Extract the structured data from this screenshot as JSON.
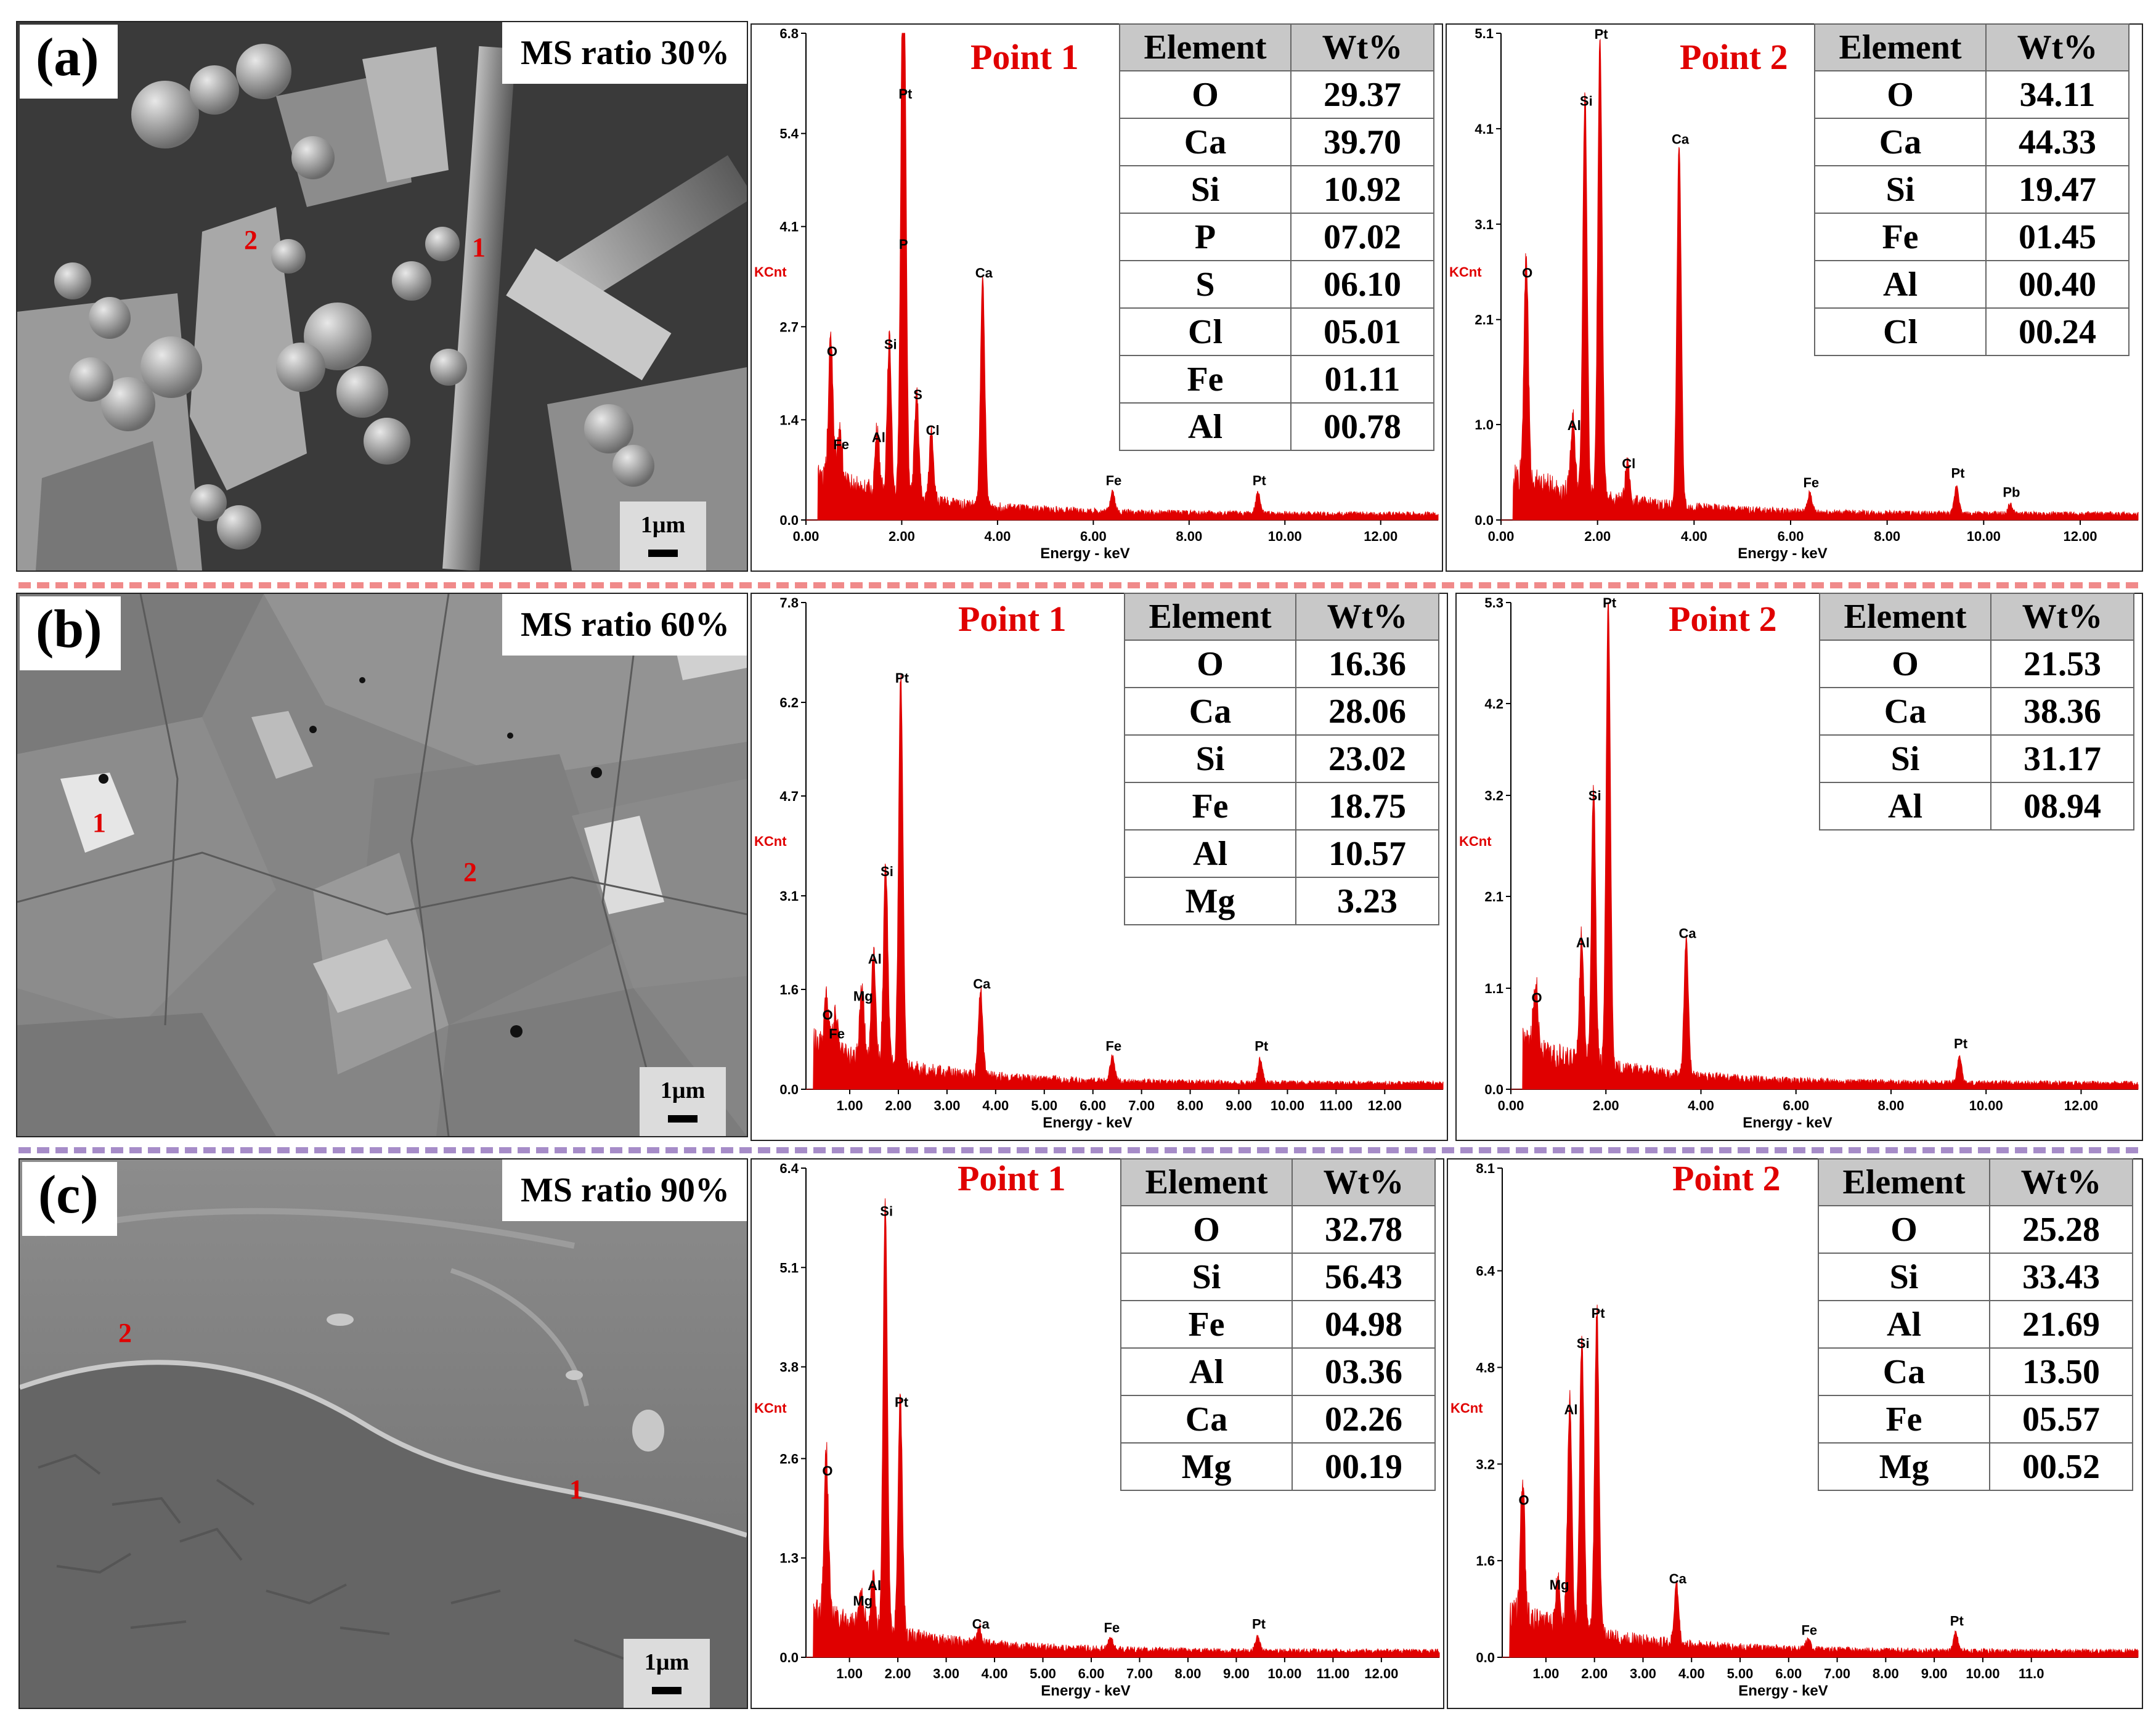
{
  "panels": [
    {
      "label": "(a)",
      "ms_ratio": "MS ratio 30%",
      "scale": "1µm",
      "point_markers": [
        "1",
        "2"
      ],
      "spectra": [
        {
          "title": "Point 1",
          "y_ticks": [
            "0.0",
            "1.4",
            "2.7",
            "4.1",
            "5.4",
            "6.8"
          ],
          "x_ticks": [
            "0.00",
            "2.00",
            "4.00",
            "6.00",
            "8.00",
            "10.00",
            "12.00"
          ],
          "ylabel": "KCnt",
          "xlabel": "Energy - keV",
          "table": {
            "headers": [
              "Element",
              "Wt%"
            ],
            "rows": [
              [
                "O",
                "29.37"
              ],
              [
                "Ca",
                "39.70"
              ],
              [
                "Si",
                "10.92"
              ],
              [
                "P",
                "07.02"
              ],
              [
                "S",
                "06.10"
              ],
              [
                "Cl",
                "05.01"
              ],
              [
                "Fe",
                "01.11"
              ],
              [
                "Al",
                "00.78"
              ]
            ]
          },
          "peaks": [
            [
              "O",
              0.52,
              2.1
            ],
            [
              "Fe",
              0.71,
              0.8
            ],
            [
              "Al",
              1.49,
              0.9
            ],
            [
              "Si",
              1.74,
              2.2
            ],
            [
              "Pt",
              2.05,
              5.7
            ],
            [
              "P",
              2.01,
              3.6
            ],
            [
              "S",
              2.31,
              1.5
            ],
            [
              "Cl",
              2.62,
              1.0
            ],
            [
              "Ca",
              3.69,
              3.2
            ],
            [
              "Fe",
              6.4,
              0.3
            ],
            [
              "Pt",
              9.44,
              0.3
            ]
          ]
        },
        {
          "title": "Point 2",
          "y_ticks": [
            "0.0",
            "1.0",
            "2.1",
            "3.1",
            "4.1",
            "5.1"
          ],
          "x_ticks": [
            "0.00",
            "2.00",
            "4.00",
            "6.00",
            "8.00",
            "10.00",
            "12.00"
          ],
          "ylabel": "KCnt",
          "xlabel": "Energy - keV",
          "table": {
            "headers": [
              "Element",
              "Wt%"
            ],
            "rows": [
              [
                "O",
                "34.11"
              ],
              [
                "Ca",
                "44.33"
              ],
              [
                "Si",
                "19.47"
              ],
              [
                "Fe",
                "01.45"
              ],
              [
                "Al",
                "00.40"
              ],
              [
                "Cl",
                "00.24"
              ]
            ]
          },
          "peaks": [
            [
              "O",
              0.52,
              2.4
            ],
            [
              "Al",
              1.49,
              0.8
            ],
            [
              "Si",
              1.74,
              4.2
            ],
            [
              "Pt",
              2.05,
              4.9
            ],
            [
              "Cl",
              2.62,
              0.4
            ],
            [
              "Ca",
              3.69,
              3.8
            ],
            [
              "Fe",
              6.4,
              0.2
            ],
            [
              "Pt",
              9.44,
              0.3
            ],
            [
              "Pb",
              10.55,
              0.1
            ]
          ]
        }
      ]
    },
    {
      "label": "(b)",
      "ms_ratio": "MS ratio 60%",
      "scale": "1µm",
      "point_markers": [
        "1",
        "2"
      ],
      "spectra": [
        {
          "title": "Point 1",
          "y_ticks": [
            "0.0",
            "1.6",
            "3.1",
            "4.7",
            "6.2",
            "7.8"
          ],
          "x_ticks": [
            "1.00",
            "2.00",
            "3.00",
            "4.00",
            "5.00",
            "6.00",
            "7.00",
            "8.00",
            "9.00",
            "10.00",
            "11.00",
            "12.00"
          ],
          "ylabel": "KCnt",
          "xlabel": "Energy - keV",
          "table": {
            "headers": [
              "Element",
              "Wt%"
            ],
            "rows": [
              [
                "O",
                "16.36"
              ],
              [
                "Ca",
                "28.06"
              ],
              [
                "Si",
                "23.02"
              ],
              [
                "Fe",
                "18.75"
              ],
              [
                "Al",
                "10.57"
              ],
              [
                "Mg",
                "3.23"
              ]
            ]
          },
          "peaks": [
            [
              "O",
              0.52,
              0.9
            ],
            [
              "Fe",
              0.71,
              0.6
            ],
            [
              "Mg",
              1.25,
              1.2
            ],
            [
              "Al",
              1.49,
              1.8
            ],
            [
              "Si",
              1.74,
              3.2
            ],
            [
              "Pt",
              2.05,
              6.3
            ],
            [
              "Ca",
              3.69,
              1.4
            ],
            [
              "Fe",
              6.4,
              0.4
            ],
            [
              "Pt",
              9.44,
              0.4
            ]
          ]
        },
        {
          "title": "Point 2",
          "y_ticks": [
            "0.0",
            "1.1",
            "2.1",
            "3.2",
            "4.2",
            "5.3"
          ],
          "x_ticks": [
            "0.00",
            "2.00",
            "4.00",
            "6.00",
            "8.00",
            "10.00",
            "12.00"
          ],
          "ylabel": "KCnt",
          "xlabel": "Energy - keV",
          "table": {
            "headers": [
              "Element",
              "Wt%"
            ],
            "rows": [
              [
                "O",
                "21.53"
              ],
              [
                "Ca",
                "38.36"
              ],
              [
                "Si",
                "31.17"
              ],
              [
                "Al",
                "08.94"
              ]
            ]
          },
          "peaks": [
            [
              "O",
              0.52,
              0.8
            ],
            [
              "Al",
              1.49,
              1.4
            ],
            [
              "Si",
              1.74,
              3.0
            ],
            [
              "Pt",
              2.05,
              5.1
            ],
            [
              "Ca",
              3.69,
              1.5
            ],
            [
              "Pt",
              9.44,
              0.3
            ]
          ]
        }
      ]
    },
    {
      "label": "(c)",
      "ms_ratio": "MS ratio 90%",
      "scale": "1µm",
      "point_markers": [
        "1",
        "2"
      ],
      "spectra": [
        {
          "title": "Point 1",
          "y_ticks": [
            "0.0",
            "1.3",
            "2.6",
            "3.8",
            "5.1",
            "6.4"
          ],
          "x_ticks": [
            "1.00",
            "2.00",
            "3.00",
            "4.00",
            "5.00",
            "6.00",
            "7.00",
            "8.00",
            "9.00",
            "10.00",
            "11.00",
            "12.00"
          ],
          "ylabel": "KCnt",
          "xlabel": "Energy - keV",
          "table": {
            "headers": [
              "Element",
              "Wt%"
            ],
            "rows": [
              [
                "O",
                "32.78"
              ],
              [
                "Si",
                "56.43"
              ],
              [
                "Fe",
                "04.98"
              ],
              [
                "Al",
                "03.36"
              ],
              [
                "Ca",
                "02.26"
              ],
              [
                "Mg",
                "00.19"
              ]
            ]
          },
          "peaks": [
            [
              "O",
              0.52,
              2.2
            ],
            [
              "Mg",
              1.25,
              0.5
            ],
            [
              "Al",
              1.49,
              0.7
            ],
            [
              "Si",
              1.74,
              5.6
            ],
            [
              "Pt",
              2.05,
              3.1
            ],
            [
              "Ca",
              3.69,
              0.2
            ],
            [
              "Fe",
              6.4,
              0.15
            ],
            [
              "Pt",
              9.44,
              0.2
            ]
          ]
        },
        {
          "title": "Point 2",
          "y_ticks": [
            "0.0",
            "1.6",
            "3.2",
            "4.8",
            "6.4",
            "8.1"
          ],
          "x_ticks": [
            "1.00",
            "2.00",
            "3.00",
            "4.00",
            "5.00",
            "6.00",
            "7.00",
            "8.00",
            "9.00",
            "10.00",
            "11.0"
          ],
          "ylabel": "KCnt",
          "xlabel": "Energy - keV",
          "table": {
            "headers": [
              "Element",
              "Wt%"
            ],
            "rows": [
              [
                "O",
                "25.28"
              ],
              [
                "Si",
                "33.43"
              ],
              [
                "Al",
                "21.69"
              ],
              [
                "Ca",
                "13.50"
              ],
              [
                "Fe",
                "05.57"
              ],
              [
                "Mg",
                "00.52"
              ]
            ]
          },
          "peaks": [
            [
              "O",
              0.52,
              2.3
            ],
            [
              "Mg",
              1.25,
              0.9
            ],
            [
              "Al",
              1.49,
              3.8
            ],
            [
              "Si",
              1.74,
              4.9
            ],
            [
              "Pt",
              2.05,
              5.4
            ],
            [
              "Ca",
              3.69,
              1.0
            ],
            [
              "Fe",
              6.4,
              0.15
            ],
            [
              "Pt",
              9.44,
              0.3
            ]
          ]
        }
      ]
    }
  ],
  "colors": {
    "spectrum": "#e00000",
    "divider_ab": "#f08a8a",
    "divider_bc": "#a68cc8"
  }
}
